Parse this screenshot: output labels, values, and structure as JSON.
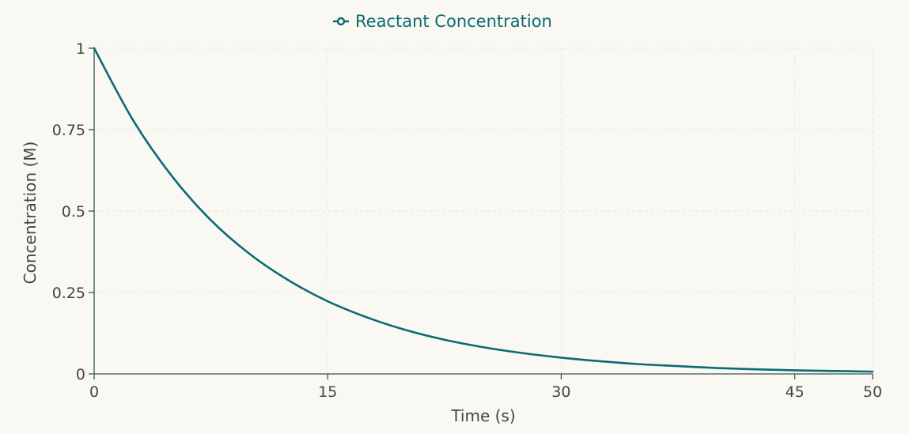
{
  "chart_data": {
    "type": "line",
    "title": "",
    "xlabel": "Time (s)",
    "ylabel": "Concentration (M)",
    "xlim": [
      0,
      50
    ],
    "ylim": [
      0,
      1
    ],
    "x_ticks": [
      0,
      15,
      30,
      45,
      50
    ],
    "x_tick_labels": [
      "0",
      "15",
      "30",
      "45",
      "50"
    ],
    "y_ticks": [
      0,
      0.25,
      0.5,
      0.75,
      1
    ],
    "y_tick_labels": [
      "0",
      "0.25",
      "0.5",
      "0.75",
      "1"
    ],
    "grid": true,
    "legend_position": "top-center",
    "series": [
      {
        "name": "Reactant Concentration",
        "color": "#0b6b73",
        "x": [
          0,
          2.5,
          5,
          7.5,
          10,
          12.5,
          15,
          17.5,
          20,
          22.5,
          25,
          27.5,
          30,
          32.5,
          35,
          37.5,
          40,
          42.5,
          45,
          47.5,
          50
        ],
        "y": [
          1,
          0.779,
          0.607,
          0.472,
          0.368,
          0.287,
          0.223,
          0.174,
          0.135,
          0.105,
          0.082,
          0.064,
          0.05,
          0.039,
          0.03,
          0.024,
          0.018,
          0.014,
          0.011,
          0.009,
          0.007
        ]
      }
    ]
  }
}
